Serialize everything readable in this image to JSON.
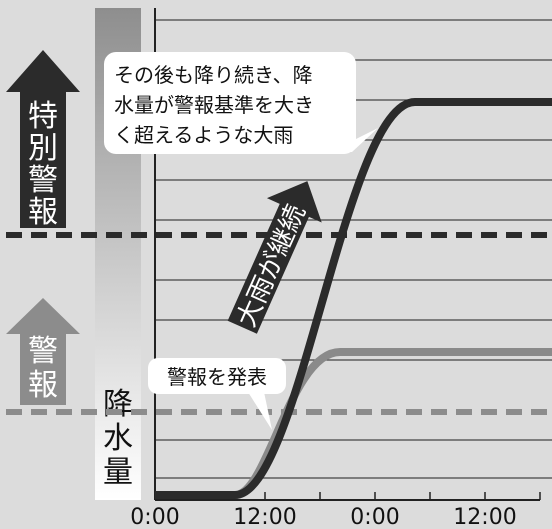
{
  "colors": {
    "background": "#dcdcdc",
    "gridline": "#444444",
    "emergency_arrow": "#2b2b2b",
    "warning_arrow": "#8c8c8c",
    "heavy_curve": "#2b2b2b",
    "moderate_curve": "#8a8a8a",
    "callout_bg": "#ffffff"
  },
  "levels": {
    "emergency": {
      "label_chars": [
        "特",
        "別",
        "警",
        "報"
      ],
      "arrow_icon": "up-arrow-icon"
    },
    "warning": {
      "label_chars": [
        "警",
        "報"
      ],
      "arrow_icon": "up-arrow-icon"
    }
  },
  "rainfall_axis": {
    "label_chars": [
      "降",
      "水",
      "量"
    ]
  },
  "time_axis": {
    "ticks": [
      "0:00",
      "12:00",
      "0:00",
      "12:00"
    ]
  },
  "annotations": {
    "heavy_callout_lines": [
      "その後も降り続き、降",
      "水量が警報基準を大き",
      "く超えるような大雨"
    ],
    "warning_callout": "警報を発表",
    "continuing_arrow_label": "大雨が継続"
  }
}
